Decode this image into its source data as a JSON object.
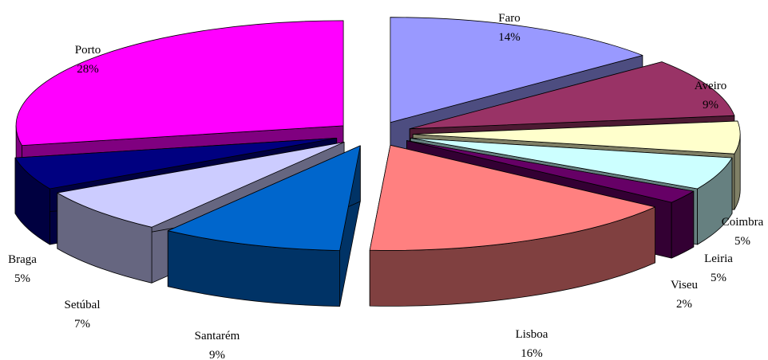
{
  "chart_data": {
    "type": "pie",
    "variant": "3d-exploded",
    "title": "",
    "slices": [
      {
        "name": "Faro",
        "label": "Faro",
        "percent_label": "14%",
        "value": 14,
        "color": "#9999ff",
        "side_color": "#4d4d80"
      },
      {
        "name": "Aveiro",
        "label": "Aveiro",
        "percent_label": "9%",
        "value": 9,
        "color": "#993366",
        "side_color": "#4d1a33"
      },
      {
        "name": "Coimbra",
        "label": "Coimbra",
        "percent_label": "5%",
        "value": 5,
        "color": "#ffffcc",
        "side_color": "#808066"
      },
      {
        "name": "Leiria",
        "label": "Leiria",
        "percent_label": "5%",
        "value": 5,
        "color": "#ccffff",
        "side_color": "#668080"
      },
      {
        "name": "Viseu",
        "label": "Viseu",
        "percent_label": "2%",
        "value": 2,
        "color": "#660066",
        "side_color": "#330033"
      },
      {
        "name": "Lisboa",
        "label": "Lisboa",
        "percent_label": "16%",
        "value": 16,
        "color": "#ff8080",
        "side_color": "#804040"
      },
      {
        "name": "Santarém",
        "label": "Santarém",
        "percent_label": "9%",
        "value": 9,
        "color": "#0066cc",
        "side_color": "#003366"
      },
      {
        "name": "Setúbal",
        "label": "Setúbal",
        "percent_label": "7%",
        "value": 7,
        "color": "#ccccff",
        "side_color": "#666680"
      },
      {
        "name": "Braga",
        "label": "Braga",
        "percent_label": "5%",
        "value": 5,
        "color": "#000080",
        "side_color": "#000040"
      },
      {
        "name": "Porto",
        "label": "Porto",
        "percent_label": "28%",
        "value": 28,
        "color": "#ff00ff",
        "side_color": "#800080"
      }
    ]
  }
}
